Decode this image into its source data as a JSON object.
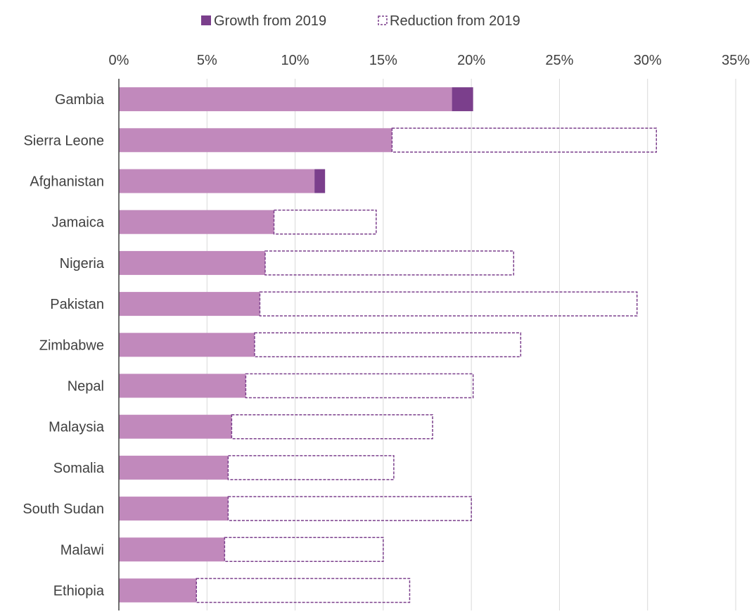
{
  "chart_data": {
    "type": "bar",
    "orientation": "horizontal",
    "stacked": true,
    "title": "",
    "xlabel": "",
    "ylabel": "",
    "xlim": [
      0,
      35
    ],
    "x_ticks": [
      "0%",
      "5%",
      "10%",
      "15%",
      "20%",
      "25%",
      "30%",
      "35%"
    ],
    "x_axis_position": "top",
    "grid": "vertical",
    "legend": {
      "position": "top",
      "items": [
        {
          "label": "Growth from 2019",
          "style": "solid",
          "color": "#7b3f8c"
        },
        {
          "label": "Reduction from 2019",
          "style": "dashed-outline",
          "color": "#7b3f8c"
        }
      ]
    },
    "categories": [
      "Gambia",
      "Sierra Leone",
      "Afghanistan",
      "Jamaica",
      "Nigeria",
      "Pakistan",
      "Zimbabwe",
      "Nepal",
      "Malaysia",
      "Somalia",
      "South Sudan",
      "Malawi",
      "Ethiopia"
    ],
    "series": [
      {
        "name": "",
        "role": "base",
        "color": "#c189bc",
        "values": [
          18.9,
          15.5,
          11.1,
          8.8,
          8.3,
          8.0,
          7.7,
          7.2,
          6.4,
          6.2,
          6.2,
          6.0,
          4.4
        ]
      },
      {
        "name": "Growth from 2019",
        "role": "growth",
        "color": "#7b3f8c",
        "values": [
          1.2,
          0,
          0.6,
          0,
          0,
          0,
          0,
          0,
          0,
          0,
          0,
          0,
          0
        ]
      },
      {
        "name": "Reduction from 2019",
        "role": "reduction",
        "color": "#7b3f8c",
        "values": [
          0,
          15.0,
          0,
          5.8,
          14.1,
          21.4,
          15.1,
          12.9,
          11.4,
          9.4,
          13.8,
          9.0,
          12.1
        ]
      }
    ]
  }
}
